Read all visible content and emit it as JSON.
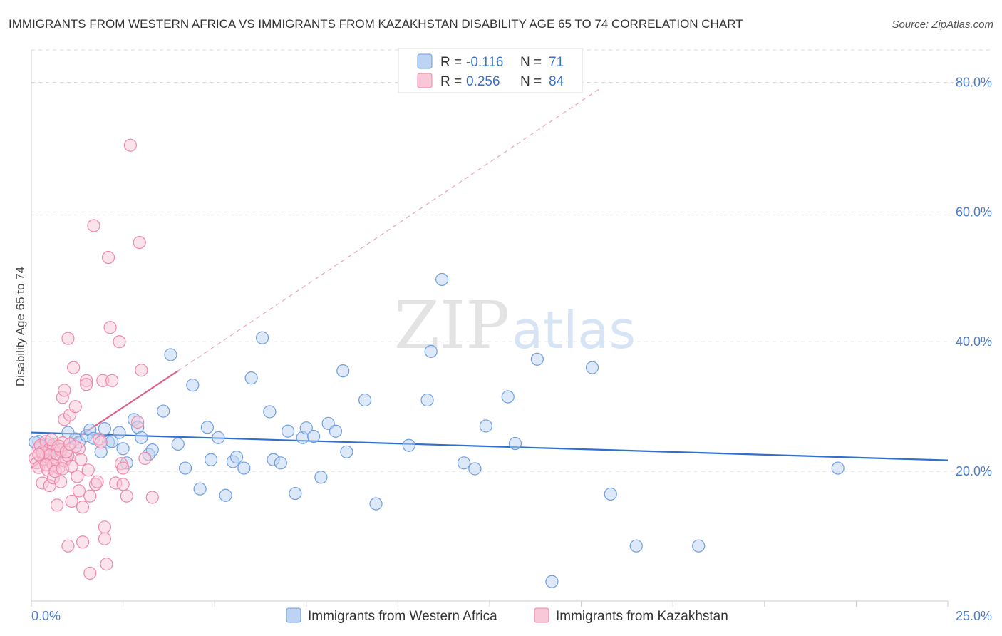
{
  "chart_data": {
    "type": "scatter",
    "title": "IMMIGRANTS FROM WESTERN AFRICA VS IMMIGRANTS FROM KAZAKHSTAN DISABILITY AGE 65 TO 74 CORRELATION CHART",
    "source": "Source: ZipAtlas.com",
    "ylabel": "Disability Age 65 to 74",
    "xlim": [
      0,
      25
    ],
    "ylim": [
      0,
      85
    ],
    "x_tick_labels": [
      "0.0%",
      "25.0%"
    ],
    "y_ticks": [
      20,
      40,
      60,
      80
    ],
    "y_tick_labels": [
      "20.0%",
      "40.0%",
      "60.0%",
      "80.0%"
    ],
    "watermark": {
      "zip": "ZIP",
      "atlas": "atlas"
    },
    "legend": [
      {
        "r_label": "R =",
        "r": "-0.116",
        "n_label": "N =",
        "n": "71"
      },
      {
        "r_label": "R =",
        "r": "0.256",
        "n_label": "N =",
        "n": "84"
      }
    ],
    "series": [
      {
        "name": "Immigrants from Western Africa",
        "color": "#6f9ee0",
        "fill": "#bcd3f3",
        "trend": {
          "x0": 0,
          "y0": 26.0,
          "x1": 25,
          "y1": 21.7,
          "color": "#2f6fce"
        },
        "points": [
          [
            0.2,
            24.6
          ],
          [
            0.3,
            23.8
          ],
          [
            0.5,
            24.2
          ],
          [
            0.6,
            23.4
          ],
          [
            0.8,
            23.0
          ],
          [
            1.0,
            26.0
          ],
          [
            1.2,
            25.0
          ],
          [
            1.3,
            24.5
          ],
          [
            1.5,
            25.5
          ],
          [
            1.6,
            26.4
          ],
          [
            1.7,
            25.1
          ],
          [
            1.9,
            23.0
          ],
          [
            2.0,
            26.6
          ],
          [
            2.1,
            24.5
          ],
          [
            2.2,
            24.6
          ],
          [
            2.4,
            26.0
          ],
          [
            2.5,
            23.5
          ],
          [
            2.6,
            21.3
          ],
          [
            2.8,
            28.0
          ],
          [
            2.9,
            26.8
          ],
          [
            3.0,
            25.2
          ],
          [
            3.2,
            22.6
          ],
          [
            3.3,
            23.3
          ],
          [
            3.6,
            29.3
          ],
          [
            3.8,
            38.0
          ],
          [
            4.0,
            24.2
          ],
          [
            4.2,
            20.5
          ],
          [
            4.4,
            33.3
          ],
          [
            4.6,
            17.3
          ],
          [
            4.8,
            26.8
          ],
          [
            4.9,
            21.8
          ],
          [
            5.1,
            25.2
          ],
          [
            5.3,
            16.3
          ],
          [
            5.5,
            21.5
          ],
          [
            5.6,
            22.2
          ],
          [
            5.8,
            20.5
          ],
          [
            6.0,
            34.4
          ],
          [
            6.3,
            40.6
          ],
          [
            6.5,
            29.2
          ],
          [
            6.6,
            21.8
          ],
          [
            6.8,
            21.3
          ],
          [
            7.0,
            26.2
          ],
          [
            7.2,
            16.6
          ],
          [
            7.4,
            25.2
          ],
          [
            7.5,
            26.7
          ],
          [
            7.7,
            25.4
          ],
          [
            7.9,
            19.1
          ],
          [
            8.1,
            27.4
          ],
          [
            8.3,
            26.2
          ],
          [
            8.5,
            35.5
          ],
          [
            8.6,
            23.0
          ],
          [
            9.1,
            31.0
          ],
          [
            9.4,
            15.0
          ],
          [
            10.3,
            24.0
          ],
          [
            10.8,
            31.0
          ],
          [
            10.9,
            38.5
          ],
          [
            11.2,
            49.6
          ],
          [
            11.8,
            21.3
          ],
          [
            12.1,
            20.4
          ],
          [
            12.4,
            27.0
          ],
          [
            13.0,
            31.5
          ],
          [
            13.2,
            24.3
          ],
          [
            13.8,
            37.3
          ],
          [
            15.3,
            36.0
          ],
          [
            15.8,
            16.5
          ],
          [
            16.5,
            8.5
          ],
          [
            18.2,
            8.5
          ],
          [
            14.2,
            3.0
          ],
          [
            22.0,
            20.5
          ],
          [
            0.1,
            24.5
          ],
          [
            0.4,
            23.5
          ]
        ]
      },
      {
        "name": "Immigrants from Kazakhstan",
        "color": "#ee88aa",
        "fill": "#f8c8d8",
        "trend": {
          "x0": 0,
          "y0": 20.5,
          "x1": 4.0,
          "y1": 35.5,
          "color": "#e0628f",
          "extend_to": [
            15.5,
            79.0
          ]
        },
        "points": [
          [
            0.1,
            22.0
          ],
          [
            0.15,
            21.3
          ],
          [
            0.2,
            23.6
          ],
          [
            0.2,
            20.6
          ],
          [
            0.25,
            24.0
          ],
          [
            0.3,
            22.8
          ],
          [
            0.3,
            18.2
          ],
          [
            0.35,
            21.8
          ],
          [
            0.4,
            24.6
          ],
          [
            0.4,
            22.3
          ],
          [
            0.45,
            20.2
          ],
          [
            0.5,
            23.5
          ],
          [
            0.5,
            17.8
          ],
          [
            0.55,
            21.4
          ],
          [
            0.6,
            24.1
          ],
          [
            0.6,
            19.0
          ],
          [
            0.65,
            22.0
          ],
          [
            0.7,
            23.5
          ],
          [
            0.7,
            14.8
          ],
          [
            0.75,
            20.5
          ],
          [
            0.8,
            18.4
          ],
          [
            0.85,
            31.4
          ],
          [
            0.85,
            24.4
          ],
          [
            0.9,
            28.0
          ],
          [
            0.9,
            32.5
          ],
          [
            0.95,
            22.0
          ],
          [
            1.0,
            40.5
          ],
          [
            1.0,
            8.5
          ],
          [
            1.05,
            28.7
          ],
          [
            1.1,
            15.4
          ],
          [
            1.15,
            36.0
          ],
          [
            1.2,
            30.0
          ],
          [
            1.25,
            19.2
          ],
          [
            1.3,
            23.5
          ],
          [
            1.3,
            17.0
          ],
          [
            1.35,
            21.8
          ],
          [
            1.4,
            9.1
          ],
          [
            1.4,
            14.5
          ],
          [
            1.5,
            34.0
          ],
          [
            1.5,
            33.4
          ],
          [
            1.55,
            20.2
          ],
          [
            1.6,
            4.3
          ],
          [
            1.6,
            16.2
          ],
          [
            1.7,
            57.9
          ],
          [
            1.75,
            18.0
          ],
          [
            1.8,
            18.4
          ],
          [
            1.85,
            25.0
          ],
          [
            1.9,
            24.5
          ],
          [
            1.95,
            34.0
          ],
          [
            2.0,
            11.4
          ],
          [
            2.0,
            9.6
          ],
          [
            2.05,
            5.7
          ],
          [
            2.1,
            53.0
          ],
          [
            2.15,
            42.2
          ],
          [
            2.2,
            34.0
          ],
          [
            2.3,
            18.2
          ],
          [
            2.4,
            40.0
          ],
          [
            2.45,
            21.2
          ],
          [
            2.5,
            20.5
          ],
          [
            2.5,
            18.0
          ],
          [
            2.6,
            16.2
          ],
          [
            2.7,
            70.3
          ],
          [
            2.9,
            27.6
          ],
          [
            2.95,
            55.3
          ],
          [
            3.0,
            35.6
          ],
          [
            3.1,
            22.0
          ],
          [
            3.3,
            16.0
          ],
          [
            0.3,
            23.0
          ],
          [
            0.5,
            22.5
          ],
          [
            0.6,
            21.0
          ],
          [
            0.7,
            22.7
          ],
          [
            0.8,
            23.3
          ],
          [
            0.9,
            21.6
          ],
          [
            1.0,
            22.4
          ],
          [
            0.4,
            21.0
          ],
          [
            0.2,
            22.6
          ],
          [
            1.1,
            20.8
          ],
          [
            1.2,
            23.8
          ],
          [
            0.55,
            24.9
          ],
          [
            0.65,
            20.0
          ],
          [
            0.75,
            23.9
          ],
          [
            0.85,
            20.4
          ],
          [
            0.95,
            23.0
          ],
          [
            1.05,
            24.2
          ]
        ]
      }
    ]
  }
}
